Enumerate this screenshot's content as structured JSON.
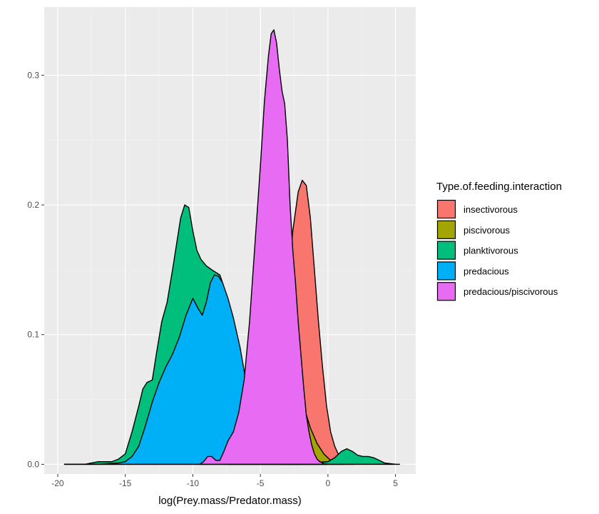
{
  "chart_data": {
    "type": "area",
    "subtype": "density",
    "xlabel": "log(Prey.mass/Predator.mass)",
    "ylabel": "",
    "xlim": [
      -21,
      6.5
    ],
    "ylim": [
      -0.0075,
      0.3525
    ],
    "xticks": [
      -20,
      -15,
      -10,
      -5,
      0,
      5
    ],
    "xtick_labels": [
      "-20",
      "-15",
      "-10",
      "-5",
      "0",
      "5"
    ],
    "yticks": [
      0.0,
      0.1,
      0.2,
      0.3
    ],
    "ytick_labels": [
      "0.0",
      "0.1",
      "0.2",
      "0.3"
    ],
    "grid": true,
    "legend": {
      "title": "Type.of.feeding.interaction",
      "position": "right"
    },
    "series": [
      {
        "name": "insectivorous",
        "color": "#F8766D",
        "x": [
          -3.5,
          -3,
          -2.6,
          -2.2,
          -1.9,
          -1.6,
          -1.3,
          -1,
          -0.7,
          -0.4,
          -0.1,
          0.2,
          0.5,
          0.8,
          1.2,
          1.5,
          2
        ],
        "y": [
          0,
          0.13,
          0.18,
          0.21,
          0.219,
          0.215,
          0.19,
          0.15,
          0.11,
          0.075,
          0.045,
          0.025,
          0.014,
          0.007,
          0.002,
          0.001,
          0
        ]
      },
      {
        "name": "piscivorous",
        "color": "#A3A500",
        "x": [
          -7.5,
          -6.8,
          -6.3,
          -5.8,
          -5.3,
          -4.8,
          -4.3,
          -3.8,
          -3.3,
          -2.8,
          -2.3,
          -1.8,
          -1.3,
          -0.8,
          -0.3,
          0.2,
          0.7,
          1.2
        ],
        "y": [
          0,
          0.015,
          0.05,
          0.085,
          0.11,
          0.125,
          0.13,
          0.125,
          0.11,
          0.09,
          0.065,
          0.045,
          0.028,
          0.016,
          0.008,
          0.003,
          0.001,
          0
        ]
      },
      {
        "name": "planktivorous",
        "color": "#00BF7D",
        "x": [
          -19.5,
          -18,
          -17.5,
          -17,
          -16,
          -15.5,
          -15,
          -14.5,
          -14,
          -13.7,
          -13.4,
          -13,
          -12.7,
          -12.3,
          -11.9,
          -11.5,
          -11.2,
          -10.9,
          -10.6,
          -10.3,
          -10,
          -9.7,
          -9.4,
          -9,
          -8.6,
          -8.3,
          -8,
          -7.8,
          -7.5,
          -7.2,
          -7,
          -6.5,
          -6,
          -5.5,
          -5,
          -4.6,
          -4.3,
          -4,
          -3.8,
          -3.6,
          0,
          0.5,
          1,
          1.4,
          1.8,
          2.2,
          2.6,
          3,
          3.4,
          3.8,
          4.2,
          4.6,
          5,
          5.3
        ],
        "y": [
          0,
          0,
          0.001,
          0.002,
          0.002,
          0.004,
          0.008,
          0.025,
          0.045,
          0.058,
          0.063,
          0.065,
          0.085,
          0.11,
          0.125,
          0.15,
          0.17,
          0.19,
          0.2,
          0.198,
          0.18,
          0.165,
          0.158,
          0.153,
          0.15,
          0.148,
          0.146,
          0.14,
          0.13,
          0.11,
          0.095,
          0.06,
          0.025,
          0.01,
          0.004,
          0.002,
          0.001,
          0,
          0,
          0,
          0.002,
          0.005,
          0.01,
          0.012,
          0.01,
          0.007,
          0.006,
          0.006,
          0.005,
          0.003,
          0.001,
          0.0005,
          0,
          0
        ]
      },
      {
        "name": "predacious",
        "color": "#00B0F6",
        "x": [
          -19.5,
          -17,
          -15.5,
          -15,
          -14.5,
          -14,
          -13.5,
          -13,
          -12.5,
          -12,
          -11.5,
          -11,
          -10.5,
          -10,
          -9.6,
          -9.3,
          -9,
          -8.7,
          -8.4,
          -8.1,
          -7.8,
          -7.4,
          -7,
          -6.5,
          -6,
          -5.5,
          -5,
          -4.5,
          -4,
          -3.5,
          -3,
          -2.5,
          -2
        ],
        "y": [
          0,
          0,
          0.001,
          0.002,
          0.006,
          0.014,
          0.03,
          0.048,
          0.063,
          0.075,
          0.085,
          0.098,
          0.115,
          0.128,
          0.12,
          0.115,
          0.125,
          0.14,
          0.146,
          0.145,
          0.14,
          0.128,
          0.113,
          0.09,
          0.06,
          0.03,
          0.012,
          0.004,
          0.001,
          0,
          0,
          0,
          0
        ]
      },
      {
        "name": "predacious/piscivorous",
        "color": "#E76BF3",
        "x": [
          -9.5,
          -9.2,
          -8.9,
          -8.6,
          -8.3,
          -8,
          -7.7,
          -7.4,
          -7,
          -6.6,
          -6.2,
          -5.8,
          -5.4,
          -5,
          -4.7,
          -4.4,
          -4.2,
          -4,
          -3.8,
          -3.6,
          -3.4,
          -3.2,
          -3,
          -2.8,
          -2.6,
          -2.4,
          -2.2,
          -2,
          -1.8,
          -1.6,
          -1.4,
          -1.2,
          -1,
          -0.8,
          -0.6,
          -0.3,
          0
        ],
        "y": [
          0,
          0.002,
          0.006,
          0.006,
          0.003,
          0.003,
          0.01,
          0.018,
          0.025,
          0.04,
          0.065,
          0.11,
          0.17,
          0.23,
          0.28,
          0.315,
          0.332,
          0.335,
          0.325,
          0.305,
          0.288,
          0.278,
          0.25,
          0.2,
          0.165,
          0.14,
          0.11,
          0.085,
          0.06,
          0.038,
          0.025,
          0.015,
          0.008,
          0.004,
          0.002,
          0.0005,
          0
        ]
      }
    ]
  }
}
